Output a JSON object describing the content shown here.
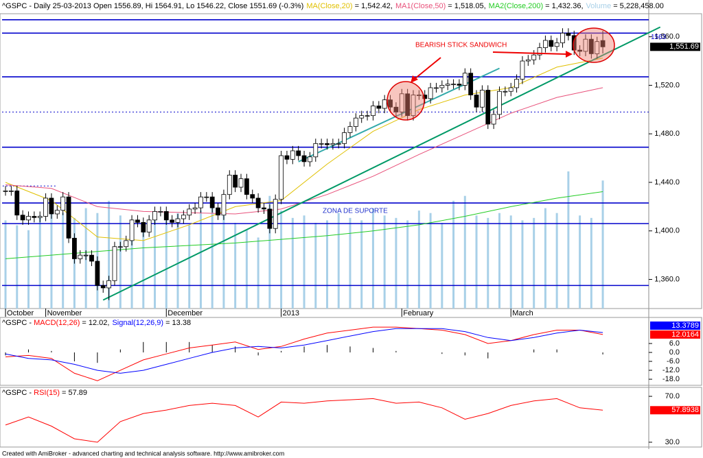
{
  "chart_data": [
    {
      "type": "candlestick",
      "title": "^GSPC - Daily 25-03-2013 Open 1556.89, Hi 1564.91, Lo 1546.22, Close 1551.69 (-0.3%)",
      "xlim": [
        -0.6,
        112
      ],
      "ylim": [
        1336,
        1579
      ],
      "yticks": [
        {
          "value": 1360,
          "label": "1,360.0"
        },
        {
          "value": 1400,
          "label": "1,400.0"
        },
        {
          "value": 1440,
          "label": "1,440.0"
        },
        {
          "value": 1480,
          "label": "1,480.0"
        },
        {
          "value": 1520,
          "label": "1,520.0"
        },
        {
          "value": 1560,
          "label": "1,560.0"
        }
      ],
      "xticks": [
        {
          "value": 0,
          "label": "October"
        },
        {
          "value": 7,
          "label": "November"
        },
        {
          "value": 28,
          "label": "December"
        },
        {
          "value": 48,
          "label": "2013"
        },
        {
          "value": 69,
          "label": "February"
        },
        {
          "value": 88,
          "label": "March"
        }
      ],
      "up_color": "#ffffff",
      "down_color": "#000000",
      "open": [
        1433,
        1433,
        1433,
        1413,
        1409,
        1412,
        1411,
        1412,
        1427,
        1414,
        1417,
        1428,
        1394,
        1377,
        1380,
        1380,
        1375,
        1355,
        1353,
        1359,
        1387,
        1387,
        1392,
        1409,
        1407,
        1399,
        1409,
        1416,
        1416,
        1409,
        1407,
        1410,
        1413,
        1418,
        1419,
        1428,
        1428,
        1419,
        1413,
        1430,
        1446,
        1436,
        1443,
        1430,
        1427,
        1419,
        1418,
        1402,
        1426,
        1462,
        1459,
        1466,
        1462,
        1457,
        1461,
        1472,
        1472,
        1471,
        1472,
        1472,
        1481,
        1486,
        1493,
        1495,
        1495,
        1503,
        1501,
        1508,
        1502,
        1498,
        1513,
        1495,
        1512,
        1512,
        1509,
        1518,
        1518,
        1520,
        1521,
        1521,
        1520,
        1530,
        1512,
        1502,
        1516,
        1488,
        1496,
        1515,
        1515,
        1518,
        1525,
        1540,
        1541,
        1545,
        1551,
        1557,
        1552,
        1555,
        1563,
        1561,
        1549,
        1548,
        1558,
        1546,
        1556.89
      ],
      "high": [
        1437,
        1437,
        1437,
        1417,
        1416,
        1416,
        1416,
        1431,
        1431,
        1421,
        1432,
        1432,
        1398,
        1384,
        1384,
        1384,
        1379,
        1359,
        1363,
        1391,
        1391,
        1396,
        1413,
        1413,
        1411,
        1413,
        1420,
        1420,
        1420,
        1413,
        1414,
        1417,
        1422,
        1423,
        1432,
        1432,
        1432,
        1423,
        1434,
        1450,
        1450,
        1447,
        1447,
        1434,
        1431,
        1423,
        1422,
        1430,
        1466,
        1466,
        1470,
        1470,
        1466,
        1465,
        1476,
        1476,
        1476,
        1476,
        1476,
        1485,
        1490,
        1497,
        1499,
        1499,
        1507,
        1507,
        1512,
        1512,
        1506,
        1517,
        1517,
        1516,
        1516,
        1516,
        1522,
        1522,
        1524,
        1525,
        1525,
        1525,
        1534,
        1534,
        1516,
        1520,
        1520,
        1500,
        1519,
        1519,
        1522,
        1529,
        1544,
        1545,
        1549,
        1555,
        1561,
        1561,
        1559,
        1567,
        1567,
        1565,
        1553,
        1562,
        1562,
        1560,
        1564.91
      ],
      "low": [
        1429,
        1429,
        1409,
        1405,
        1405,
        1407,
        1407,
        1408,
        1410,
        1410,
        1413,
        1390,
        1373,
        1373,
        1376,
        1371,
        1351,
        1349,
        1343,
        1355,
        1383,
        1383,
        1388,
        1403,
        1395,
        1395,
        1405,
        1412,
        1405,
        1403,
        1403,
        1406,
        1409,
        1414,
        1415,
        1424,
        1415,
        1409,
        1409,
        1426,
        1432,
        1432,
        1426,
        1423,
        1415,
        1414,
        1398,
        1398,
        1422,
        1455,
        1455,
        1458,
        1453,
        1453,
        1457,
        1468,
        1467,
        1467,
        1468,
        1468,
        1477,
        1482,
        1489,
        1491,
        1491,
        1497,
        1497,
        1498,
        1494,
        1494,
        1491,
        1491,
        1508,
        1505,
        1505,
        1514,
        1514,
        1516,
        1517,
        1516,
        1516,
        1508,
        1498,
        1498,
        1484,
        1484,
        1492,
        1511,
        1511,
        1514,
        1521,
        1536,
        1537,
        1541,
        1547,
        1548,
        1548,
        1551,
        1557,
        1545,
        1544,
        1544,
        1542,
        1542,
        1546.22
      ],
      "close": [
        1433,
        1433,
        1413,
        1409,
        1412,
        1411,
        1412,
        1427,
        1414,
        1417,
        1428,
        1394,
        1377,
        1380,
        1380,
        1375,
        1355,
        1353,
        1359,
        1387,
        1387,
        1392,
        1409,
        1407,
        1399,
        1409,
        1416,
        1416,
        1409,
        1407,
        1410,
        1413,
        1418,
        1419,
        1428,
        1428,
        1419,
        1413,
        1430,
        1446,
        1436,
        1443,
        1430,
        1427,
        1419,
        1418,
        1402,
        1426,
        1462,
        1459,
        1466,
        1462,
        1457,
        1461,
        1472,
        1472,
        1471,
        1472,
        1472,
        1481,
        1486,
        1493,
        1495,
        1495,
        1503,
        1501,
        1508,
        1502,
        1498,
        1513,
        1495,
        1512,
        1512,
        1509,
        1518,
        1518,
        1520,
        1521,
        1521,
        1520,
        1530,
        1512,
        1502,
        1516,
        1488,
        1496,
        1515,
        1515,
        1518,
        1525,
        1540,
        1541,
        1545,
        1551,
        1557,
        1552,
        1555,
        1563,
        1561,
        1549,
        1548,
        1558,
        1546,
        1556,
        1551.69
      ],
      "last_label": "1,551.69",
      "series": [
        {
          "name": "MA(Close,20)",
          "header_value": "= 1,542.42,",
          "color": "#e0c000",
          "x": [
            0,
            8,
            16,
            24,
            32,
            40,
            48,
            56,
            64,
            72,
            80,
            88,
            96,
            104
          ],
          "values": [
            1440,
            1425,
            1395,
            1392,
            1405,
            1420,
            1425,
            1455,
            1482,
            1500,
            1512,
            1518,
            1535,
            1542.42
          ]
        },
        {
          "name": "MA1(Close,50)",
          "header_value": "= 1,518.05,",
          "color": "#e8507a",
          "x": [
            0,
            8,
            16,
            24,
            32,
            40,
            48,
            56,
            64,
            72,
            80,
            88,
            96,
            104
          ],
          "values": [
            1438,
            1435,
            1420,
            1416,
            1415,
            1414,
            1418,
            1430,
            1445,
            1463,
            1480,
            1497,
            1510,
            1518.05
          ]
        },
        {
          "name": "MA2(Close,200)",
          "header_value": "= 1,432.36,",
          "color": "#22cc22",
          "x": [
            0,
            8,
            16,
            24,
            32,
            40,
            48,
            56,
            64,
            72,
            80,
            88,
            96,
            104
          ],
          "values": [
            1377,
            1380,
            1383,
            1386,
            1388,
            1390,
            1393,
            1396,
            1400,
            1405,
            1412,
            1420,
            1427,
            1432.36
          ]
        },
        {
          "name": "Volume",
          "type": "bar",
          "header_value": "= 5,228,458.00",
          "color": "#a8d0e8",
          "x": [
            0,
            2,
            4,
            6,
            8,
            10,
            12,
            14,
            16,
            18,
            20,
            22,
            24,
            26,
            28,
            30,
            32,
            34,
            36,
            38,
            40,
            42,
            44,
            46,
            48,
            50,
            52,
            54,
            56,
            58,
            60,
            62,
            64,
            66,
            68,
            70,
            72,
            74,
            76,
            78,
            80,
            82,
            84,
            86,
            88,
            90,
            92,
            94,
            96,
            98,
            100,
            102,
            104
          ],
          "values": [
            3600000,
            3400000,
            3200000,
            3800000,
            4000000,
            3900000,
            3700000,
            4100000,
            3900000,
            4400000,
            3800000,
            3100000,
            3500000,
            3700000,
            3600000,
            3900000,
            3400000,
            4000000,
            4300000,
            3800000,
            3500000,
            3200000,
            2900000,
            4600000,
            4000000,
            3700000,
            3800000,
            3500000,
            3600000,
            3900000,
            3700000,
            3600000,
            4100000,
            3800000,
            3700000,
            3600000,
            4000000,
            3900000,
            3500000,
            4400000,
            4600000,
            3800000,
            3700000,
            3900000,
            3800000,
            3600000,
            3700000,
            4100000,
            3900000,
            5600000,
            3800000,
            3700000,
            5228458
          ]
        }
      ],
      "level_color": "#0000cc",
      "levels": [
        {
          "value": 1574
        },
        {
          "value": 1563,
          "label": "1563"
        },
        {
          "value": 1527
        },
        {
          "value": 1498,
          "dashed": true
        },
        {
          "value": 1469
        },
        {
          "value": 1437,
          "dashed": true,
          "x": [
            -0.5,
            9
          ]
        },
        {
          "value": 1423
        },
        {
          "value": 1406
        },
        {
          "value": 1355
        }
      ],
      "trendlines": [
        {
          "x": [
            17,
            114
          ],
          "values": [
            1343,
            1568
          ],
          "color": "#009966"
        },
        {
          "x": [
            51,
            86
          ],
          "values": [
            1457,
            1534
          ],
          "color": "#33aaaa"
        }
      ],
      "annotations": [
        "BEARISH STICK SANDWICH",
        "ZONA DE SUPORTE"
      ]
    },
    {
      "type": "line",
      "title": "^GSPC - ",
      "xlim": [
        -0.6,
        112
      ],
      "ylim": [
        -22.1,
        23.5
      ],
      "yticks": [
        {
          "value": 6,
          "label": "6.0"
        },
        {
          "value": 0,
          "label": "0.0"
        },
        {
          "value": -6,
          "label": "-6.0"
        },
        {
          "value": -12,
          "label": "-12.0"
        },
        {
          "value": -18,
          "label": "-18.0"
        }
      ],
      "series": [
        {
          "name": "MACD(12,26)",
          "header_value": "= 12.02,",
          "last_label": "12.0164",
          "color": "#ff0000",
          "x": [
            0,
            4,
            8,
            12,
            16,
            20,
            24,
            28,
            32,
            36,
            40,
            44,
            48,
            52,
            56,
            60,
            64,
            68,
            72,
            76,
            80,
            84,
            88,
            92,
            96,
            100,
            104
          ],
          "values": [
            -3,
            -2,
            -4,
            -14,
            -19,
            -12,
            -5,
            -1,
            3,
            5,
            7,
            2,
            4,
            9,
            13,
            15,
            17,
            17,
            16,
            15,
            12,
            6,
            8,
            12,
            15,
            15,
            12.02
          ]
        },
        {
          "name": "Signal(12,26,9)",
          "header_value": "= 13.38",
          "last_label": "13.3789",
          "color": "#0000ff",
          "x": [
            0,
            4,
            8,
            12,
            16,
            20,
            24,
            28,
            32,
            36,
            40,
            44,
            48,
            52,
            56,
            60,
            64,
            68,
            72,
            76,
            80,
            84,
            88,
            92,
            96,
            100,
            104
          ],
          "values": [
            -1,
            -4,
            -5,
            -8,
            -12,
            -14,
            -12,
            -8,
            -4,
            0,
            3,
            4,
            3,
            5,
            8,
            11,
            14,
            16,
            16,
            16,
            14,
            10,
            8,
            10,
            13,
            15,
            13.38
          ]
        }
      ],
      "histogram": {
        "color": "#000000",
        "x": [
          0,
          4,
          8,
          12,
          16,
          20,
          24,
          28,
          32,
          36,
          40,
          44,
          48,
          52,
          56,
          60,
          64,
          68,
          72,
          76,
          80,
          84,
          88,
          92,
          96,
          100,
          104
        ],
        "values": [
          -2,
          2,
          1,
          -6,
          -7,
          2,
          7,
          7,
          7,
          5,
          4,
          -2,
          1,
          4,
          5,
          4,
          3,
          1,
          0,
          -1,
          -2,
          -4,
          0,
          2,
          2,
          0,
          -1.36
        ]
      }
    },
    {
      "type": "line",
      "title": "^GSPC - ",
      "xlim": [
        -0.6,
        112
      ],
      "ylim": [
        25.8,
        77.8
      ],
      "yticks": [
        {
          "value": 70,
          "label": "70.0"
        },
        {
          "value": 30,
          "label": "30.0"
        }
      ],
      "series": [
        {
          "name": "RSI(15)",
          "header_value": "= 57.89",
          "last_label": "57.8938",
          "color": "#ff0000",
          "x": [
            0,
            4,
            8,
            12,
            16,
            20,
            24,
            28,
            32,
            36,
            40,
            44,
            48,
            52,
            56,
            60,
            64,
            68,
            72,
            76,
            80,
            84,
            88,
            92,
            96,
            100,
            104
          ],
          "values": [
            45,
            52,
            44,
            33,
            30,
            48,
            55,
            58,
            62,
            64,
            62,
            52,
            65,
            64,
            66,
            67,
            68,
            64,
            65,
            60,
            50,
            55,
            62,
            66,
            68,
            60,
            57.89
          ]
        }
      ]
    }
  ],
  "footer": "Created with AmiBroker - advanced charting and technical analysis software. http://www.amibroker.com"
}
